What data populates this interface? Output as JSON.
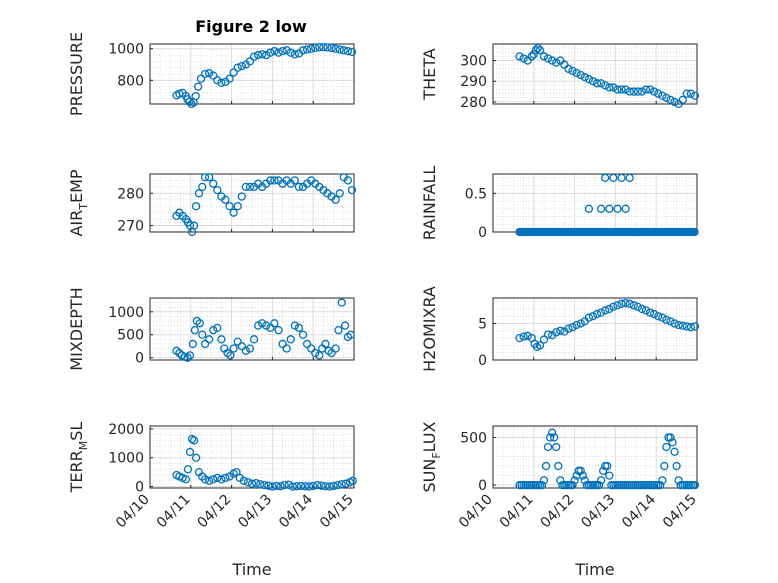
{
  "figure": {
    "title": "Figure 2 low"
  },
  "chart_data": [
    {
      "type": "scatter",
      "ylabel": "PRESSURE",
      "xlabel": "",
      "xlim": [
        "04/10",
        "04/15"
      ],
      "ylim": [
        650,
        1030
      ],
      "yticks": [
        800,
        1000
      ],
      "xticks": [],
      "color": "#0072BD",
      "grid": "on",
      "x": [
        0.65,
        0.72,
        0.8,
        0.88,
        0.92,
        0.97,
        1.02,
        1.07,
        1.12,
        1.18,
        1.25,
        1.35,
        1.45,
        1.55,
        1.65,
        1.75,
        1.85,
        1.95,
        2.05,
        2.15,
        2.25,
        2.35,
        2.45,
        2.55,
        2.65,
        2.75,
        2.85,
        2.95,
        3.05,
        3.15,
        3.25,
        3.35,
        3.45,
        3.55,
        3.65,
        3.75,
        3.85,
        3.95,
        4.05,
        4.15,
        4.25,
        4.35,
        4.45,
        4.55,
        4.65,
        4.75,
        4.85,
        4.95
      ],
      "y": [
        705,
        715,
        720,
        700,
        680,
        665,
        650,
        660,
        700,
        760,
        810,
        840,
        845,
        830,
        800,
        785,
        790,
        810,
        850,
        880,
        890,
        900,
        920,
        950,
        960,
        965,
        960,
        975,
        985,
        975,
        985,
        990,
        975,
        965,
        970,
        990,
        995,
        1000,
        1005,
        1010,
        1010,
        1008,
        1005,
        1000,
        995,
        990,
        985,
        980
      ]
    },
    {
      "type": "scatter",
      "ylabel": "THETA",
      "xlabel": "",
      "xlim": [
        "04/10",
        "04/15"
      ],
      "ylim": [
        279,
        308
      ],
      "yticks": [
        280,
        290,
        300
      ],
      "xticks": [],
      "color": "#0072BD",
      "grid": "on",
      "x": [
        0.65,
        0.75,
        0.85,
        0.95,
        1.0,
        1.05,
        1.1,
        1.15,
        1.25,
        1.35,
        1.45,
        1.55,
        1.65,
        1.75,
        1.85,
        1.95,
        2.05,
        2.15,
        2.25,
        2.35,
        2.45,
        2.55,
        2.65,
        2.75,
        2.85,
        2.95,
        3.05,
        3.15,
        3.25,
        3.35,
        3.45,
        3.55,
        3.65,
        3.75,
        3.85,
        3.95,
        4.05,
        4.15,
        4.25,
        4.35,
        4.45,
        4.55,
        4.65,
        4.75,
        4.85,
        4.95
      ],
      "y": [
        302,
        301,
        300,
        302,
        303,
        305,
        306,
        305,
        302,
        301,
        300,
        299,
        300,
        298,
        296,
        295,
        294,
        293,
        292,
        291,
        290,
        289,
        289,
        288,
        287,
        287,
        286,
        286,
        286,
        285,
        285,
        285,
        285,
        286,
        286,
        285,
        284,
        283,
        282,
        281,
        280,
        279,
        281,
        284,
        284,
        283
      ]
    },
    {
      "type": "scatter",
      "ylabel": "AIR_TEMP",
      "xlabel": "",
      "xlim": [
        "04/10",
        "04/15"
      ],
      "ylim": [
        268,
        286
      ],
      "yticks": [
        270,
        280
      ],
      "xticks": [],
      "color": "#0072BD",
      "grid": "on",
      "x": [
        0.65,
        0.72,
        0.8,
        0.88,
        0.93,
        0.98,
        1.03,
        1.08,
        1.13,
        1.2,
        1.28,
        1.35,
        1.45,
        1.55,
        1.65,
        1.75,
        1.85,
        1.95,
        2.05,
        2.15,
        2.25,
        2.35,
        2.45,
        2.55,
        2.65,
        2.75,
        2.85,
        2.95,
        3.05,
        3.15,
        3.25,
        3.35,
        3.45,
        3.55,
        3.65,
        3.75,
        3.85,
        3.95,
        4.05,
        4.15,
        4.25,
        4.35,
        4.45,
        4.55,
        4.65,
        4.75,
        4.85,
        4.95
      ],
      "y": [
        273,
        274,
        273,
        272,
        271,
        270,
        268,
        270,
        276,
        280,
        282,
        285,
        285,
        283,
        281,
        279,
        278,
        276,
        274,
        276,
        279,
        282,
        282,
        282,
        283,
        282,
        283,
        284,
        284,
        284,
        283,
        284,
        283,
        284,
        282,
        282,
        283,
        284,
        283,
        282,
        281,
        280,
        279,
        278,
        280,
        285,
        284,
        281
      ]
    },
    {
      "type": "scatter",
      "ylabel": "RAINFALL",
      "xlabel": "",
      "xlim": [
        "04/10",
        "04/15"
      ],
      "ylim": [
        0,
        0.75
      ],
      "yticks": [
        0,
        0.5
      ],
      "ytick_labels": [
        "0",
        "0.5"
      ],
      "xticks": [],
      "color": "#0072BD",
      "grid": "on",
      "x": [
        2.35,
        2.65,
        2.75,
        2.85,
        2.95,
        3.05,
        3.15,
        3.25,
        3.35
      ],
      "y": [
        0.3,
        0.3,
        0.7,
        0.3,
        0.7,
        0.3,
        0.7,
        0.3,
        0.7
      ],
      "baseline": {
        "x_from": 0.65,
        "x_to": 4.95,
        "y": 0
      }
    },
    {
      "type": "scatter",
      "ylabel": "MIXDEPTH",
      "xlabel": "",
      "xlim": [
        "04/10",
        "04/15"
      ],
      "ylim": [
        -50,
        1300
      ],
      "yticks": [
        0,
        500,
        1000
      ],
      "xticks": [],
      "color": "#0072BD",
      "grid": "on",
      "x": [
        0.65,
        0.72,
        0.78,
        0.85,
        0.92,
        0.98,
        1.05,
        1.1,
        1.15,
        1.22,
        1.28,
        1.35,
        1.45,
        1.55,
        1.65,
        1.75,
        1.82,
        1.9,
        1.97,
        2.05,
        2.15,
        2.25,
        2.35,
        2.45,
        2.55,
        2.65,
        2.75,
        2.85,
        2.95,
        3.05,
        3.15,
        3.25,
        3.35,
        3.45,
        3.55,
        3.65,
        3.75,
        3.85,
        3.95,
        4.05,
        4.15,
        4.22,
        4.3,
        4.38,
        4.45,
        4.55,
        4.62,
        4.7,
        4.78,
        4.85,
        4.92
      ],
      "y": [
        150,
        100,
        50,
        20,
        0,
        50,
        300,
        600,
        800,
        750,
        500,
        300,
        400,
        600,
        650,
        400,
        200,
        100,
        50,
        200,
        350,
        250,
        150,
        200,
        400,
        700,
        750,
        700,
        650,
        750,
        600,
        300,
        200,
        400,
        700,
        650,
        500,
        300,
        200,
        100,
        50,
        200,
        300,
        150,
        100,
        200,
        600,
        1200,
        700,
        450,
        500
      ]
    },
    {
      "type": "scatter",
      "ylabel": "H2OMIXRA",
      "xlabel": "",
      "xlim": [
        "04/10",
        "04/15"
      ],
      "ylim": [
        0,
        8.5
      ],
      "yticks": [
        0,
        5
      ],
      "xticks": [],
      "color": "#0072BD",
      "grid": "on",
      "x": [
        0.65,
        0.75,
        0.85,
        0.95,
        1.02,
        1.08,
        1.15,
        1.25,
        1.35,
        1.45,
        1.55,
        1.65,
        1.75,
        1.85,
        1.95,
        2.05,
        2.15,
        2.25,
        2.35,
        2.45,
        2.55,
        2.65,
        2.75,
        2.85,
        2.95,
        3.05,
        3.15,
        3.25,
        3.35,
        3.45,
        3.55,
        3.65,
        3.75,
        3.85,
        3.95,
        4.05,
        4.15,
        4.25,
        4.35,
        4.45,
        4.55,
        4.65,
        4.75,
        4.85,
        4.95
      ],
      "y": [
        3,
        3.2,
        3.3,
        3,
        2.2,
        1.8,
        2,
        2.8,
        3.5,
        3.4,
        3.8,
        4,
        3.9,
        4.3,
        4.5,
        4.8,
        5,
        5.3,
        5.8,
        6,
        6.3,
        6.5,
        6.8,
        7,
        7.3,
        7.5,
        7.7,
        7.8,
        7.7,
        7.5,
        7.3,
        7,
        6.8,
        6.5,
        6.3,
        6,
        5.8,
        5.5,
        5.3,
        5,
        4.8,
        4.7,
        4.6,
        4.5,
        4.6
      ]
    },
    {
      "type": "scatter",
      "ylabel": "TERR_MSL",
      "xlabel": "Time",
      "xlim": [
        "04/10",
        "04/15"
      ],
      "ylim": [
        -50,
        2100
      ],
      "yticks": [
        0,
        1000,
        2000
      ],
      "xticks": [
        "04/10",
        "04/11",
        "04/12",
        "04/13",
        "04/14",
        "04/15"
      ],
      "color": "#0072BD",
      "grid": "on",
      "x": [
        0.65,
        0.72,
        0.8,
        0.88,
        0.93,
        0.98,
        1.03,
        1.08,
        1.13,
        1.2,
        1.28,
        1.35,
        1.45,
        1.55,
        1.65,
        1.75,
        1.85,
        1.95,
        2.05,
        2.12,
        2.2,
        2.3,
        2.4,
        2.5,
        2.6,
        2.7,
        2.8,
        2.9,
        3.0,
        3.1,
        3.2,
        3.3,
        3.4,
        3.5,
        3.6,
        3.7,
        3.8,
        3.9,
        4.0,
        4.1,
        4.2,
        4.3,
        4.4,
        4.5,
        4.6,
        4.7,
        4.8,
        4.9,
        4.97
      ],
      "y": [
        400,
        350,
        300,
        250,
        600,
        1200,
        1650,
        1600,
        1000,
        500,
        350,
        250,
        200,
        250,
        300,
        250,
        300,
        350,
        450,
        500,
        300,
        200,
        150,
        100,
        120,
        80,
        50,
        30,
        0,
        20,
        10,
        50,
        60,
        0,
        10,
        20,
        10,
        0,
        20,
        50,
        30,
        10,
        0,
        20,
        50,
        80,
        100,
        150,
        200
      ]
    },
    {
      "type": "scatter",
      "ylabel": "SUN_FLUX",
      "xlabel": "Time",
      "xlim": [
        "04/10",
        "04/15"
      ],
      "ylim": [
        -30,
        620
      ],
      "yticks": [
        0,
        500
      ],
      "xticks": [
        "04/10",
        "04/11",
        "04/12",
        "04/13",
        "04/14",
        "04/15"
      ],
      "color": "#0072BD",
      "grid": "on",
      "x": [
        0.65,
        0.7,
        0.75,
        0.8,
        0.85,
        0.9,
        0.95,
        1.0,
        1.05,
        1.1,
        1.15,
        1.2,
        1.25,
        1.3,
        1.35,
        1.4,
        1.45,
        1.5,
        1.55,
        1.6,
        1.65,
        1.7,
        1.75,
        1.8,
        1.85,
        1.9,
        1.95,
        2.0,
        2.05,
        2.1,
        2.15,
        2.2,
        2.25,
        2.3,
        2.35,
        2.4,
        2.45,
        2.5,
        2.55,
        2.6,
        2.65,
        2.7,
        2.75,
        2.8,
        2.85,
        2.9,
        2.95,
        3.0,
        3.05,
        3.1,
        3.15,
        3.2,
        3.25,
        3.3,
        3.35,
        3.4,
        3.45,
        3.5,
        3.55,
        3.6,
        3.65,
        3.7,
        3.75,
        3.8,
        3.85,
        3.9,
        3.95,
        4.0,
        4.05,
        4.1,
        4.15,
        4.2,
        4.25,
        4.3,
        4.35,
        4.4,
        4.45,
        4.5,
        4.55,
        4.6,
        4.65,
        4.7,
        4.75,
        4.8,
        4.85,
        4.9,
        4.95
      ],
      "y": [
        0,
        0,
        0,
        0,
        0,
        0,
        0,
        0,
        0,
        0,
        0,
        0,
        50,
        200,
        400,
        500,
        550,
        500,
        400,
        200,
        50,
        0,
        0,
        0,
        0,
        0,
        0,
        50,
        100,
        150,
        150,
        100,
        50,
        0,
        0,
        0,
        0,
        0,
        0,
        0,
        50,
        150,
        200,
        200,
        100,
        0,
        0,
        0,
        0,
        0,
        0,
        0,
        0,
        0,
        0,
        0,
        0,
        0,
        0,
        0,
        0,
        0,
        0,
        0,
        0,
        0,
        0,
        0,
        0,
        0,
        50,
        200,
        400,
        500,
        500,
        450,
        350,
        200,
        50,
        0,
        0,
        0,
        0,
        0,
        0,
        0,
        0
      ]
    }
  ]
}
